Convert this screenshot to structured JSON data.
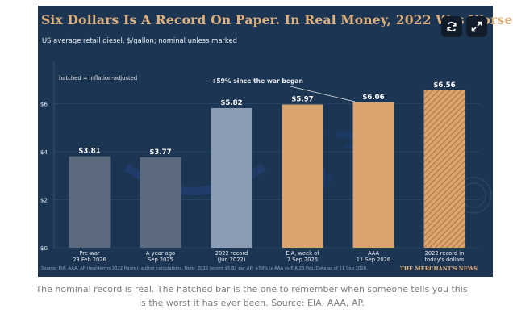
{
  "figure": {
    "title": "Six Dollars Is A Record On Paper. In Real Money, 2022 Was Worse",
    "subtitle": "US average retail diesel, $/gallon; nominal unless marked",
    "caption": "The nominal record is real. The hatched bar is the one to remember when someone tells you this is the worst it has ever been. Source: EIA, AAA, AP."
  },
  "controls": {
    "refresh_icon": "refresh-icon",
    "expand_icon": "expand-icon"
  },
  "colors": {
    "background": "#1c3553",
    "accent": "#e0b07a",
    "grey_bar": "#5b6a7c",
    "blue_bar": "#8b9db5",
    "orange_bar": "#d9a46d",
    "hatch": "#c98a4f"
  },
  "chart_data": {
    "type": "bar",
    "title": "Six Dollars Is A Record On Paper. In Real Money, 2022 Was Worse",
    "subtitle": "US average retail diesel, $/gallon; nominal unless marked",
    "ylabel": "",
    "xlabel": "",
    "ylim": [
      0,
      7.6
    ],
    "yticks": [
      0,
      2,
      4,
      6
    ],
    "ytick_labels": [
      "$0",
      "$2",
      "$4",
      "$6"
    ],
    "grid": true,
    "categories": [
      "Pre-war\n23 Feb 2026",
      "A year ago\nSep 2025",
      "2022 record\n(Jun 2022)",
      "EIA, week of\n7 Sep 2026",
      "AAA\n11 Sep 2026",
      "2022 record in\ntoday's dollars"
    ],
    "values": [
      3.81,
      3.77,
      5.82,
      5.97,
      6.06,
      6.56
    ],
    "value_labels": [
      "$3.81",
      "$3.77",
      "$5.82",
      "$5.97",
      "$6.06",
      "$6.56"
    ],
    "bar_styles": [
      "grey",
      "grey",
      "blue",
      "orange",
      "orange",
      "hatched"
    ],
    "legend_note": "hatched = inflation-adjusted",
    "annotation": "+59% since the war began",
    "source": "Source: EIA, AAA, AP (real-terms 2022 figure); author calculations. Note: 2022 record $5.82 per AP; +59% is AAA vs EIA 23 Feb. Data as of 11 Sep 2026.",
    "brand": "THE MERCHANT'S NEWS"
  }
}
